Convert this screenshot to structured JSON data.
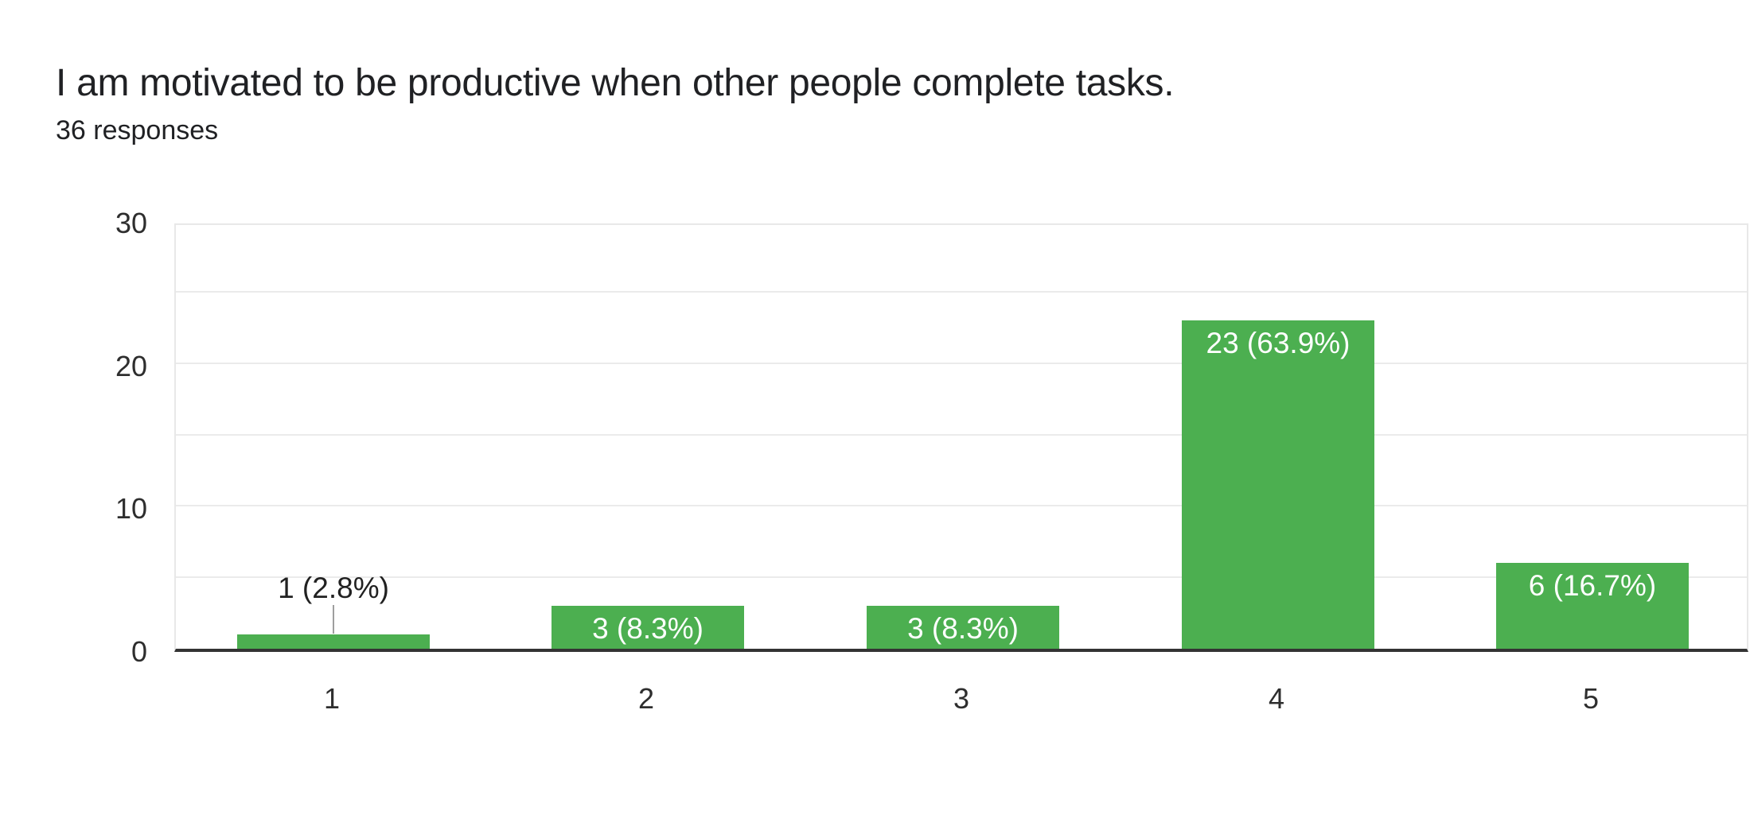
{
  "chart_data": {
    "type": "bar",
    "title": "I am motivated to be productive when other people complete tasks.",
    "subtitle": "36 responses",
    "categories": [
      "1",
      "2",
      "3",
      "4",
      "5"
    ],
    "values": [
      1,
      3,
      3,
      23,
      6
    ],
    "bar_labels": [
      "1 (2.8%)",
      "3 (8.3%)",
      "3 (8.3%)",
      "23 (63.9%)",
      "6 (16.7%)"
    ],
    "label_placement": [
      "outside",
      "inside",
      "inside",
      "inside",
      "inside"
    ],
    "ylim": [
      0,
      30
    ],
    "ytick_values": [
      0,
      10,
      20,
      30
    ],
    "ytick_labels": [
      "0",
      "10",
      "20",
      "30"
    ],
    "gridline_step": 5,
    "grid": "on",
    "legend": "none",
    "xlabel": "",
    "ylabel": ""
  },
  "colors": {
    "bar": "#4caf50",
    "bar_label_inside": "#ffffff",
    "bar_label_outside": "#212121",
    "callout_line": "#9e9e9e",
    "axis_line": "#333333",
    "gridline": "#ebebeb",
    "plot_border": "#e8e8e8",
    "title_text": "#202124",
    "tick_text": "#2e2e2e",
    "background": "#ffffff"
  }
}
